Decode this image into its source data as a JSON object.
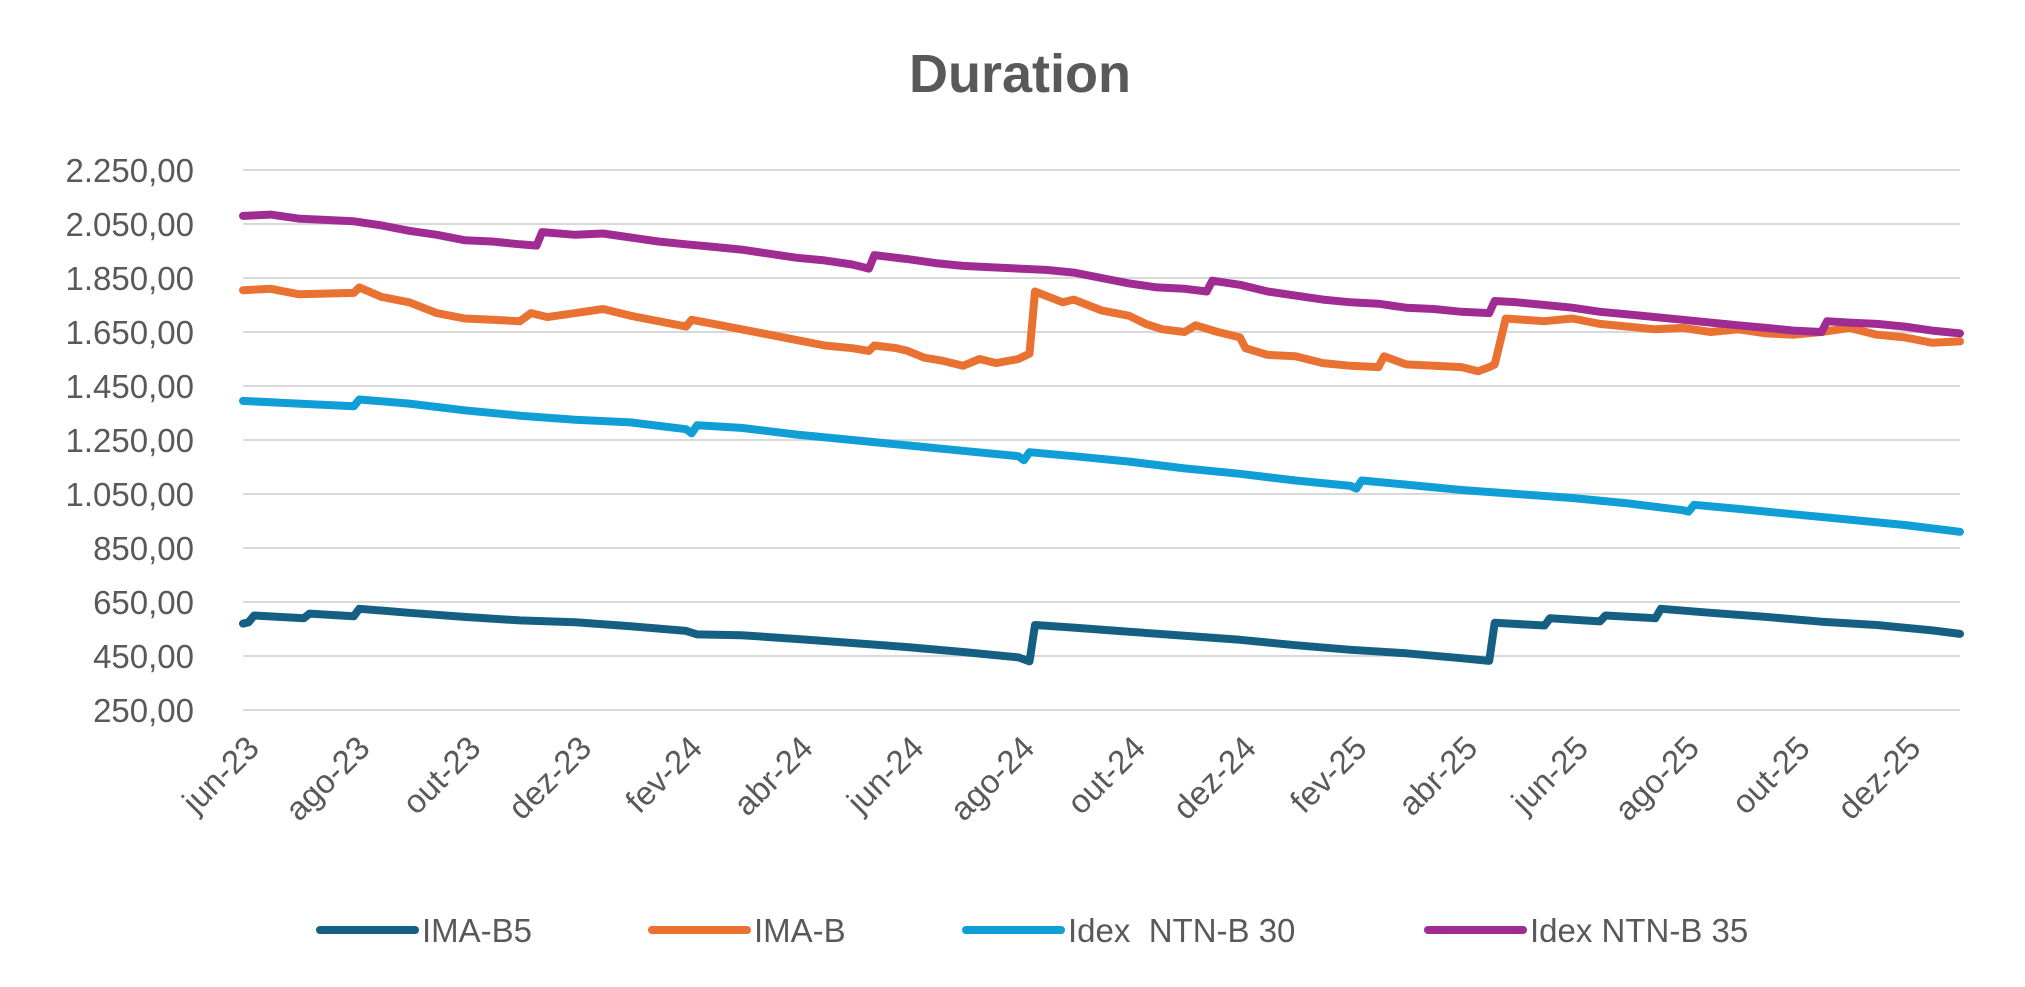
{
  "chart_data": {
    "type": "line",
    "title": "Duration",
    "xlabel": "",
    "ylabel": "",
    "ylim": [
      250,
      2250
    ],
    "yticks": [
      250,
      450,
      650,
      850,
      1050,
      1250,
      1450,
      1650,
      1850,
      2050,
      2250
    ],
    "ytick_labels": [
      "250,00",
      "450,00",
      "650,00",
      "850,00",
      "1.050,00",
      "1.250,00",
      "1.450,00",
      "1.650,00",
      "1.850,00",
      "2.050,00",
      "2.250,00"
    ],
    "x_range_months": [
      0,
      31
    ],
    "xtick_months": [
      0,
      2,
      4,
      6,
      8,
      10,
      12,
      14,
      16,
      18,
      20,
      22,
      24,
      26,
      28,
      30
    ],
    "xtick_labels": [
      "jun-23",
      "ago-23",
      "out-23",
      "dez-23",
      "fev-24",
      "abr-24",
      "jun-24",
      "ago-24",
      "out-24",
      "dez-24",
      "fev-25",
      "abr-25",
      "jun-25",
      "ago-25",
      "out-25",
      "dez-25"
    ],
    "legend_position": "bottom",
    "series": [
      {
        "name": "IMA-B5",
        "color": "#156082",
        "points": [
          [
            0,
            570
          ],
          [
            0.1,
            575
          ],
          [
            0.2,
            600
          ],
          [
            1.1,
            590
          ],
          [
            1.2,
            607
          ],
          [
            2.0,
            597
          ],
          [
            2.1,
            625
          ],
          [
            3.0,
            610
          ],
          [
            4.0,
            595
          ],
          [
            5.0,
            582
          ],
          [
            6.0,
            575
          ],
          [
            7.0,
            560
          ],
          [
            8.0,
            543
          ],
          [
            8.2,
            530
          ],
          [
            9.0,
            527
          ],
          [
            10.0,
            513
          ],
          [
            11.0,
            498
          ],
          [
            12.0,
            483
          ],
          [
            13.0,
            465
          ],
          [
            14.0,
            445
          ],
          [
            14.2,
            430
          ],
          [
            14.3,
            565
          ],
          [
            15.0,
            555
          ],
          [
            16.0,
            540
          ],
          [
            17.0,
            525
          ],
          [
            18.0,
            510
          ],
          [
            19.0,
            490
          ],
          [
            20.0,
            473
          ],
          [
            21.0,
            460
          ],
          [
            22.0,
            442
          ],
          [
            22.5,
            432
          ],
          [
            22.6,
            573
          ],
          [
            23.5,
            563
          ],
          [
            23.6,
            590
          ],
          [
            24.5,
            578
          ],
          [
            24.6,
            600
          ],
          [
            25.5,
            590
          ],
          [
            25.6,
            625
          ],
          [
            26.5,
            610
          ],
          [
            27.5,
            595
          ],
          [
            28.5,
            577
          ],
          [
            29.5,
            565
          ],
          [
            30.5,
            545
          ],
          [
            31.0,
            532
          ]
        ]
      },
      {
        "name": "IMA-B",
        "color": "#E97132",
        "points": [
          [
            0,
            1805
          ],
          [
            0.5,
            1810
          ],
          [
            1.0,
            1790
          ],
          [
            2.0,
            1795
          ],
          [
            2.1,
            1815
          ],
          [
            2.5,
            1780
          ],
          [
            3.0,
            1760
          ],
          [
            3.5,
            1720
          ],
          [
            4.0,
            1700
          ],
          [
            4.5,
            1695
          ],
          [
            5.0,
            1690
          ],
          [
            5.2,
            1720
          ],
          [
            5.5,
            1705
          ],
          [
            6.0,
            1720
          ],
          [
            6.5,
            1735
          ],
          [
            7.0,
            1710
          ],
          [
            7.5,
            1690
          ],
          [
            8.0,
            1670
          ],
          [
            8.1,
            1695
          ],
          [
            8.5,
            1680
          ],
          [
            9.0,
            1660
          ],
          [
            9.5,
            1640
          ],
          [
            10.0,
            1620
          ],
          [
            10.5,
            1600
          ],
          [
            11.0,
            1590
          ],
          [
            11.3,
            1580
          ],
          [
            11.4,
            1600
          ],
          [
            11.8,
            1590
          ],
          [
            12.0,
            1580
          ],
          [
            12.3,
            1555
          ],
          [
            12.6,
            1545
          ],
          [
            13.0,
            1525
          ],
          [
            13.3,
            1550
          ],
          [
            13.6,
            1535
          ],
          [
            14.0,
            1550
          ],
          [
            14.2,
            1570
          ],
          [
            14.3,
            1800
          ],
          [
            14.8,
            1760
          ],
          [
            15.0,
            1770
          ],
          [
            15.5,
            1730
          ],
          [
            16.0,
            1710
          ],
          [
            16.3,
            1680
          ],
          [
            16.6,
            1660
          ],
          [
            17.0,
            1650
          ],
          [
            17.2,
            1675
          ],
          [
            17.6,
            1650
          ],
          [
            18.0,
            1630
          ],
          [
            18.1,
            1590
          ],
          [
            18.5,
            1565
          ],
          [
            19.0,
            1560
          ],
          [
            19.5,
            1535
          ],
          [
            20.0,
            1525
          ],
          [
            20.5,
            1520
          ],
          [
            20.6,
            1560
          ],
          [
            21.0,
            1530
          ],
          [
            21.5,
            1525
          ],
          [
            22.0,
            1520
          ],
          [
            22.3,
            1505
          ],
          [
            22.5,
            1520
          ],
          [
            22.6,
            1530
          ],
          [
            22.8,
            1700
          ],
          [
            23.5,
            1690
          ],
          [
            24.0,
            1700
          ],
          [
            24.5,
            1680
          ],
          [
            25.0,
            1670
          ],
          [
            25.5,
            1660
          ],
          [
            26.0,
            1665
          ],
          [
            26.5,
            1650
          ],
          [
            27.0,
            1660
          ],
          [
            27.5,
            1645
          ],
          [
            28.0,
            1640
          ],
          [
            28.5,
            1650
          ],
          [
            29.0,
            1665
          ],
          [
            29.5,
            1640
          ],
          [
            30.0,
            1630
          ],
          [
            30.5,
            1610
          ],
          [
            31.0,
            1615
          ]
        ]
      },
      {
        "name": "Idex  NTN-B 30",
        "color": "#0F9ED5",
        "points": [
          [
            0,
            1395
          ],
          [
            1.0,
            1385
          ],
          [
            2.0,
            1375
          ],
          [
            2.1,
            1400
          ],
          [
            3.0,
            1385
          ],
          [
            4.0,
            1360
          ],
          [
            5.0,
            1340
          ],
          [
            6.0,
            1325
          ],
          [
            7.0,
            1315
          ],
          [
            8.0,
            1290
          ],
          [
            8.1,
            1275
          ],
          [
            8.2,
            1305
          ],
          [
            9.0,
            1295
          ],
          [
            10.0,
            1270
          ],
          [
            11.0,
            1250
          ],
          [
            12.0,
            1230
          ],
          [
            13.0,
            1210
          ],
          [
            14.0,
            1190
          ],
          [
            14.1,
            1175
          ],
          [
            14.2,
            1205
          ],
          [
            15.0,
            1190
          ],
          [
            16.0,
            1170
          ],
          [
            17.0,
            1145
          ],
          [
            18.0,
            1125
          ],
          [
            19.0,
            1100
          ],
          [
            20.0,
            1080
          ],
          [
            20.1,
            1070
          ],
          [
            20.2,
            1100
          ],
          [
            21.0,
            1085
          ],
          [
            22.0,
            1065
          ],
          [
            23.0,
            1050
          ],
          [
            24.0,
            1035
          ],
          [
            25.0,
            1015
          ],
          [
            26.0,
            990
          ],
          [
            26.1,
            985
          ],
          [
            26.2,
            1010
          ],
          [
            27.0,
            995
          ],
          [
            28.0,
            975
          ],
          [
            29.0,
            955
          ],
          [
            30.0,
            935
          ],
          [
            31.0,
            910
          ]
        ]
      },
      {
        "name": "Idex NTN-B 35",
        "color": "#A02B93",
        "points": [
          [
            0,
            2080
          ],
          [
            0.5,
            2085
          ],
          [
            1.0,
            2070
          ],
          [
            2.0,
            2060
          ],
          [
            2.5,
            2045
          ],
          [
            3.0,
            2025
          ],
          [
            3.5,
            2010
          ],
          [
            4.0,
            1990
          ],
          [
            4.5,
            1985
          ],
          [
            5.0,
            1975
          ],
          [
            5.3,
            1970
          ],
          [
            5.4,
            2020
          ],
          [
            6.0,
            2010
          ],
          [
            6.5,
            2015
          ],
          [
            7.0,
            2000
          ],
          [
            7.5,
            1985
          ],
          [
            8.0,
            1975
          ],
          [
            8.5,
            1965
          ],
          [
            9.0,
            1955
          ],
          [
            9.5,
            1940
          ],
          [
            10.0,
            1925
          ],
          [
            10.5,
            1915
          ],
          [
            11.0,
            1900
          ],
          [
            11.3,
            1885
          ],
          [
            11.4,
            1935
          ],
          [
            12.0,
            1920
          ],
          [
            12.5,
            1905
          ],
          [
            13.0,
            1895
          ],
          [
            13.5,
            1890
          ],
          [
            14.0,
            1885
          ],
          [
            14.5,
            1880
          ],
          [
            15.0,
            1870
          ],
          [
            15.5,
            1850
          ],
          [
            16.0,
            1830
          ],
          [
            16.5,
            1815
          ],
          [
            17.0,
            1810
          ],
          [
            17.4,
            1800
          ],
          [
            17.5,
            1840
          ],
          [
            18.0,
            1825
          ],
          [
            18.5,
            1800
          ],
          [
            19.0,
            1785
          ],
          [
            19.5,
            1770
          ],
          [
            20.0,
            1760
          ],
          [
            20.5,
            1755
          ],
          [
            21.0,
            1740
          ],
          [
            21.5,
            1735
          ],
          [
            22.0,
            1725
          ],
          [
            22.5,
            1720
          ],
          [
            22.6,
            1765
          ],
          [
            23.0,
            1760
          ],
          [
            23.5,
            1750
          ],
          [
            24.0,
            1740
          ],
          [
            24.5,
            1725
          ],
          [
            25.0,
            1715
          ],
          [
            25.5,
            1705
          ],
          [
            26.0,
            1695
          ],
          [
            26.5,
            1685
          ],
          [
            27.0,
            1675
          ],
          [
            27.5,
            1665
          ],
          [
            28.0,
            1655
          ],
          [
            28.5,
            1650
          ],
          [
            28.6,
            1690
          ],
          [
            29.0,
            1685
          ],
          [
            29.5,
            1680
          ],
          [
            30.0,
            1670
          ],
          [
            30.5,
            1655
          ],
          [
            31.0,
            1645
          ]
        ]
      }
    ]
  }
}
